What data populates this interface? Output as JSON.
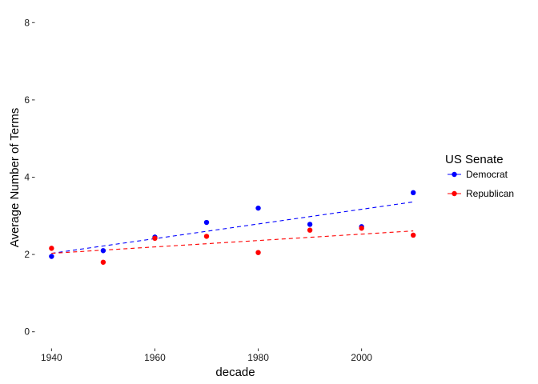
{
  "chart_data": {
    "type": "scatter",
    "title": "",
    "xlabel": "decade",
    "ylabel": "Average Number of Terms",
    "xlim": [
      1937,
      2014
    ],
    "ylim": [
      -0.42,
      8.42
    ],
    "x_ticks": [
      1940,
      1960,
      1980,
      2000
    ],
    "y_ticks": [
      0,
      2,
      4,
      6,
      8
    ],
    "grid": false,
    "legend": {
      "title": "US Senate",
      "placement": "right"
    },
    "series": [
      {
        "name": "Democrat",
        "color": "#0000ff",
        "x": [
          1940,
          1950,
          1960,
          1970,
          1980,
          1990,
          2000,
          2010
        ],
        "y": [
          1.95,
          2.1,
          2.45,
          2.83,
          3.2,
          2.78,
          2.72,
          3.6
        ],
        "trend": {
          "style": "dashed",
          "x": [
            1940,
            2010
          ],
          "y": [
            2.03,
            3.36
          ]
        }
      },
      {
        "name": "Republican",
        "color": "#ff0000",
        "x": [
          1940,
          1950,
          1960,
          1970,
          1980,
          1990,
          2000,
          2010
        ],
        "y": [
          2.16,
          1.8,
          2.42,
          2.47,
          2.05,
          2.63,
          2.68,
          2.5
        ],
        "trend": {
          "style": "dashed",
          "x": [
            1940,
            2010
          ],
          "y": [
            2.03,
            2.61
          ]
        }
      }
    ]
  }
}
